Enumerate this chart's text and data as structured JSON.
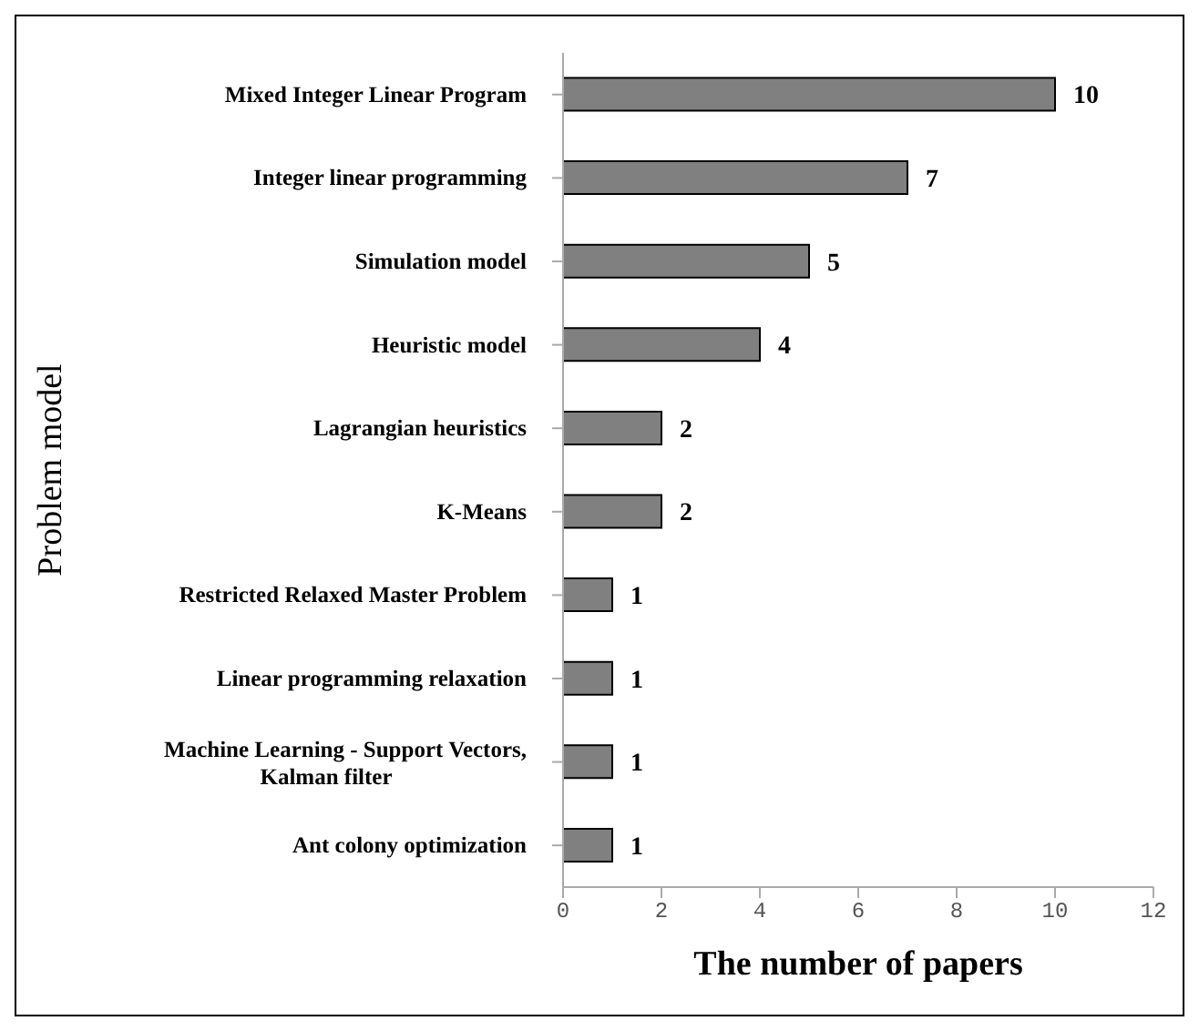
{
  "chart_data": {
    "type": "bar",
    "orientation": "horizontal",
    "xlabel": "The number of papers",
    "ylabel": "Problem model",
    "categories": [
      "Mixed Integer Linear Program",
      "Integer linear programming",
      "Simulation model",
      "Heuristic model",
      "Lagrangian heuristics",
      "K-Means",
      "Restricted Relaxed Master Problem",
      "Linear programming relaxation",
      "Machine Learning - Support Vectors, Kalman filter",
      "Ant colony optimization"
    ],
    "values": [
      10,
      7,
      5,
      4,
      2,
      2,
      1,
      1,
      1,
      1
    ],
    "color": "#808080",
    "xlim": [
      0,
      12
    ],
    "xticks": [
      0,
      2,
      4,
      6,
      8,
      10,
      12
    ],
    "grid": false,
    "data_labels": true
  }
}
